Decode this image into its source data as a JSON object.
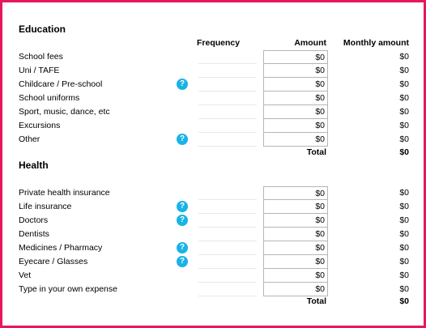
{
  "columns": {
    "frequency": "Frequency",
    "amount": "Amount",
    "monthly": "Monthly amount"
  },
  "education": {
    "title": "Education",
    "rows": [
      {
        "label": "School fees",
        "amount": "$0",
        "monthly": "$0"
      },
      {
        "label": "Uni / TAFE",
        "amount": "$0",
        "monthly": "$0"
      },
      {
        "label": "Childcare / Pre-school",
        "amount": "$0",
        "monthly": "$0",
        "help": "?"
      },
      {
        "label": "School uniforms",
        "amount": "$0",
        "monthly": "$0"
      },
      {
        "label": "Sport, music, dance, etc",
        "amount": "$0",
        "monthly": "$0"
      },
      {
        "label": "Excursions",
        "amount": "$0",
        "monthly": "$0"
      },
      {
        "label": "Other",
        "amount": "$0",
        "monthly": "$0",
        "help": "?"
      }
    ],
    "total_label": "Total",
    "total_value": "$0"
  },
  "health": {
    "title": "Health",
    "rows": [
      {
        "label": "Private health insurance",
        "amount": "$0",
        "monthly": "$0"
      },
      {
        "label": "Life insurance",
        "amount": "$0",
        "monthly": "$0",
        "help": "?"
      },
      {
        "label": "Doctors",
        "amount": "$0",
        "monthly": "$0",
        "help": "?"
      },
      {
        "label": "Dentists",
        "amount": "$0",
        "monthly": "$0"
      },
      {
        "label": "Medicines / Pharmacy",
        "amount": "$0",
        "monthly": "$0",
        "help": "?"
      },
      {
        "label": "Eyecare / Glasses",
        "amount": "$0",
        "monthly": "$0",
        "help": "?"
      },
      {
        "label": "Vet",
        "amount": "$0",
        "monthly": "$0"
      },
      {
        "label": "Type in your own expense",
        "amount": "$0",
        "monthly": "$0"
      }
    ],
    "total_label": "Total",
    "total_value": "$0"
  },
  "help_color": "#19b3e6",
  "frame_color": "#e6175c"
}
